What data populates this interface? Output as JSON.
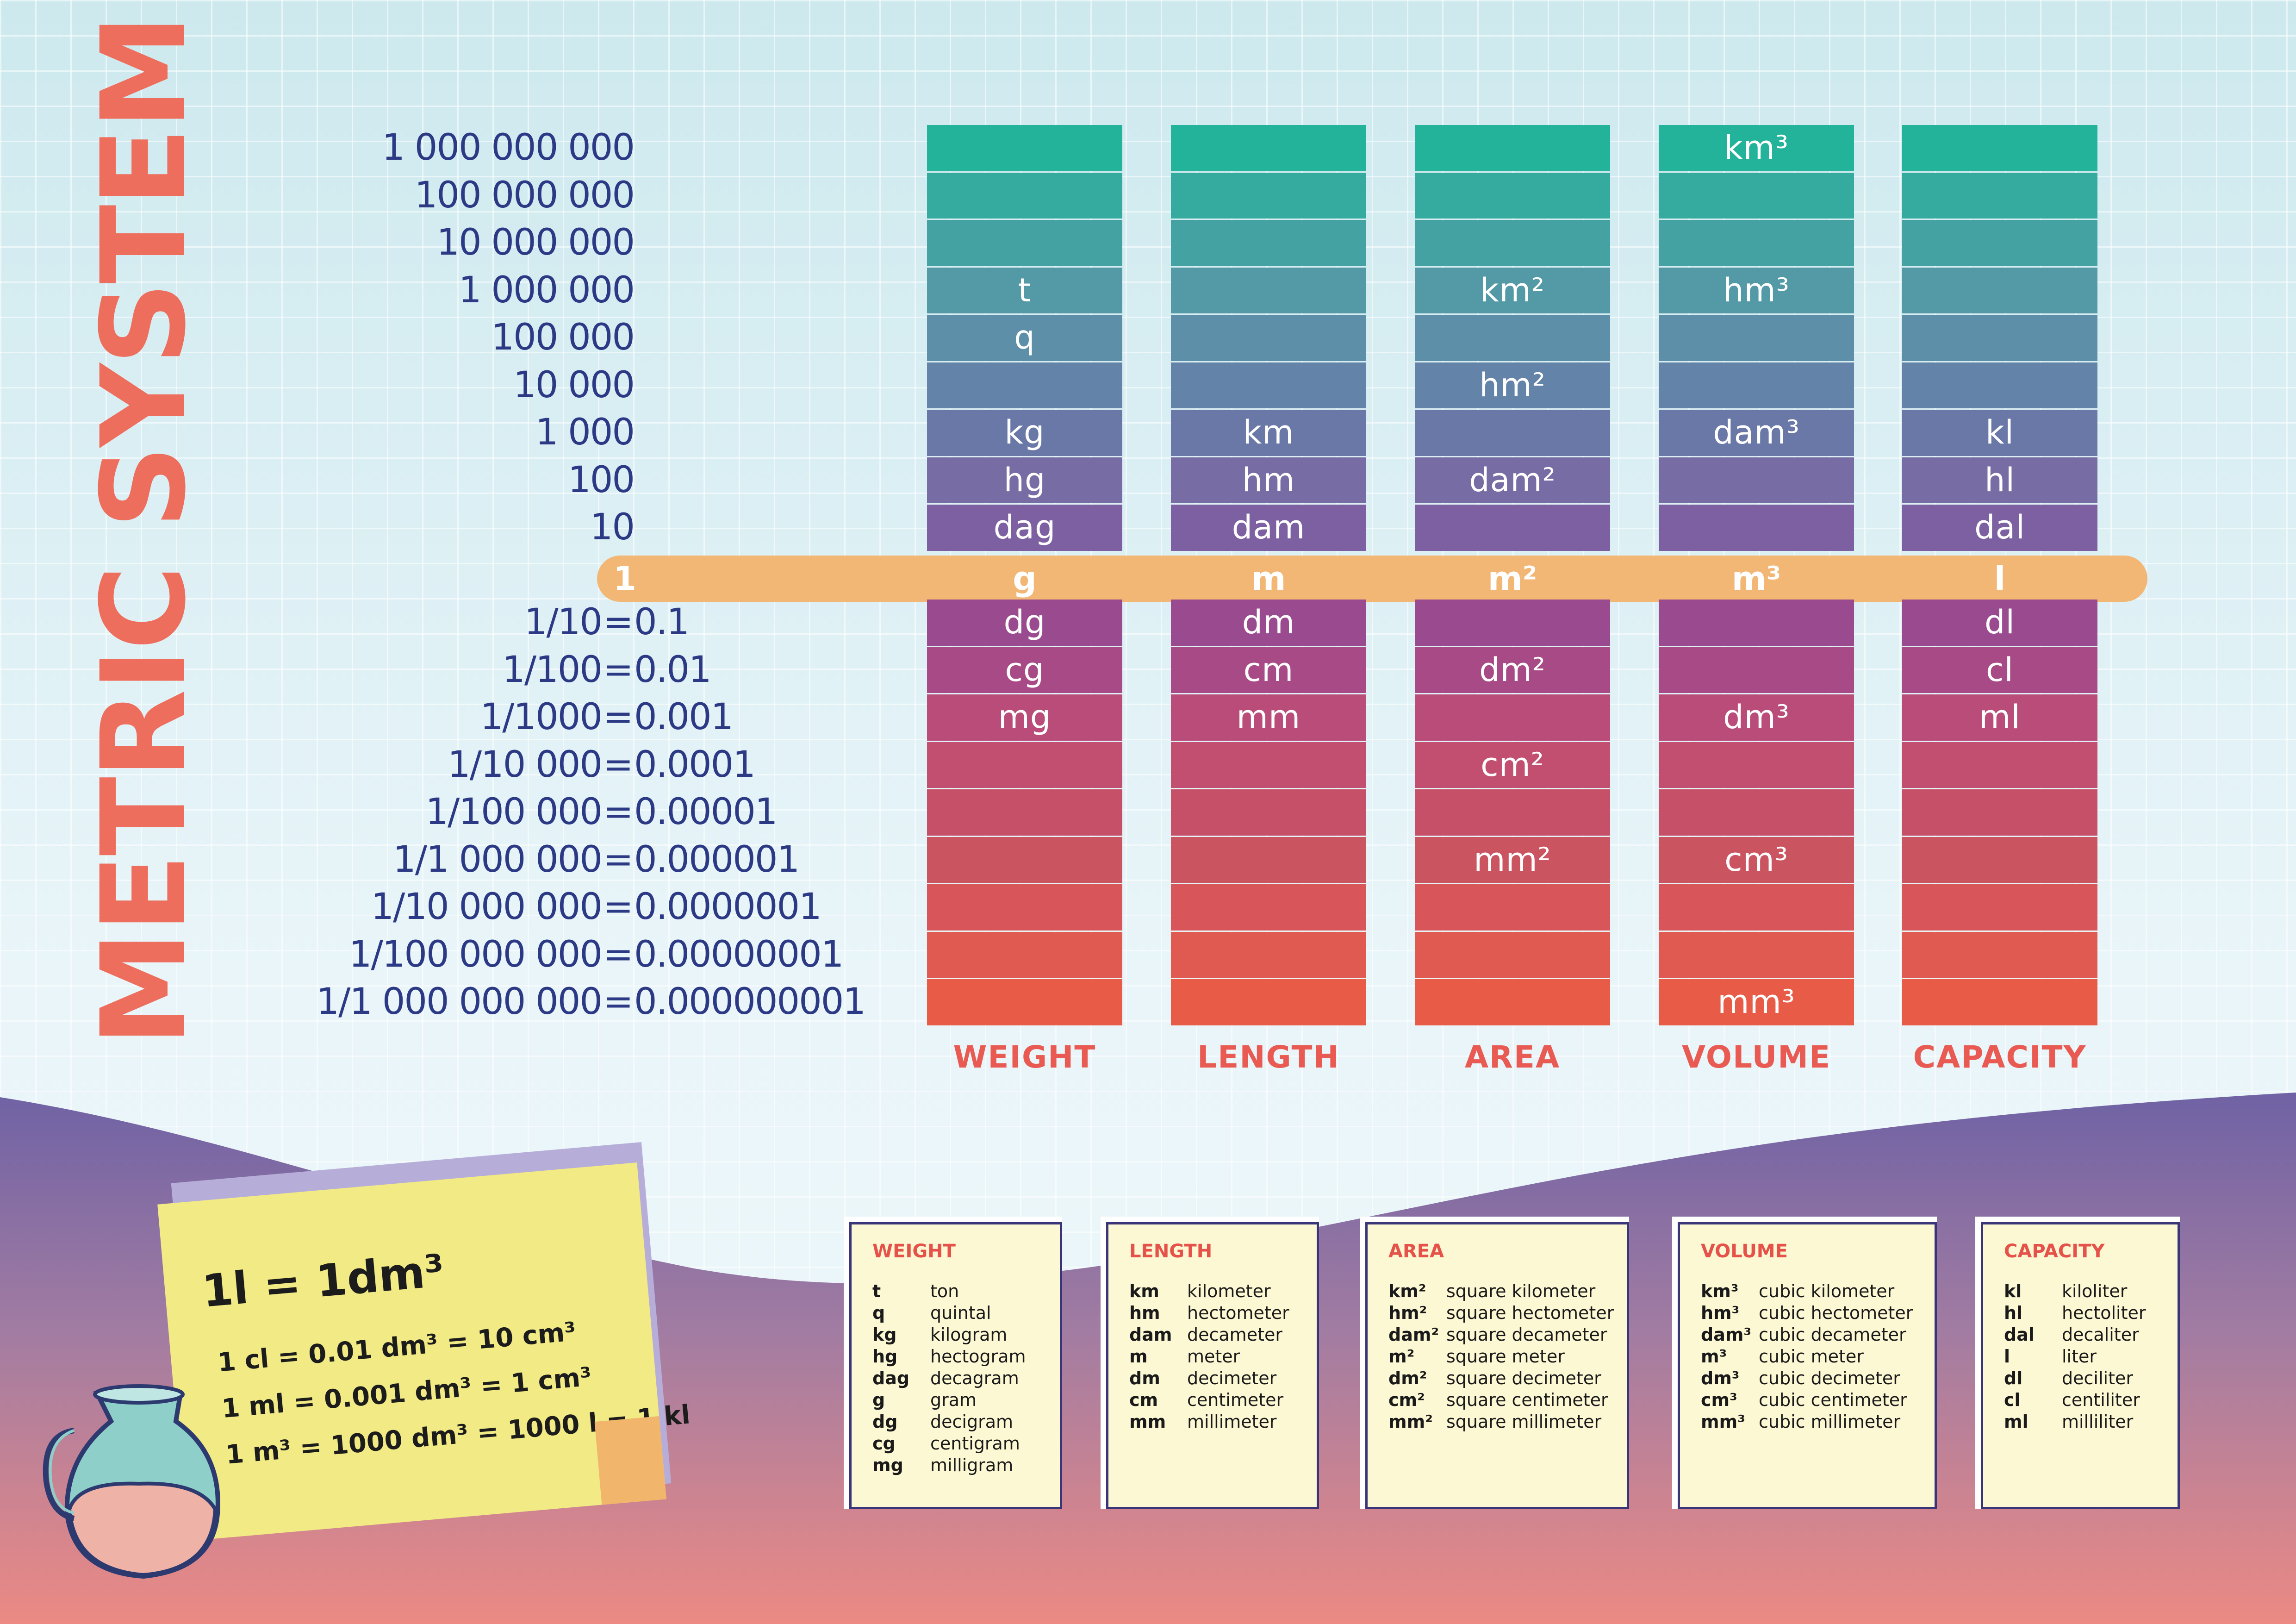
{
  "title": "METRIC SYSTEM",
  "colors": {
    "title": "#ee6e5d",
    "scale_text": "#2c3a86",
    "caption": "#e85a52",
    "band": "#f2b774",
    "row_gradient": [
      "#22b39a",
      "#34ab9e",
      "#45a2a2",
      "#5499a6",
      "#5d8fa8",
      "#6483a8",
      "#6a78a7",
      "#776ca3",
      "#7d60a1",
      "#8c4f98",
      "#9a4b8f",
      "#a84a86",
      "#b94c78",
      "#c24f70",
      "#c65068",
      "#cb5461",
      "#d8565a",
      "#e05a51",
      "#e85c47"
    ]
  },
  "scale_labels": [
    "1 000 000 000",
    "100 000 000",
    "10 000 000",
    "1 000 000",
    "100 000",
    "10 000",
    "1 000",
    "100",
    "10"
  ],
  "base_label": "1",
  "fraction_labels": [
    {
      "frac": "1/10",
      "eq": "=",
      "dec": "0.1"
    },
    {
      "frac": "1/100",
      "eq": "=",
      "dec": "0.01"
    },
    {
      "frac": "1/1000",
      "eq": "=",
      "dec": "0.001"
    },
    {
      "frac": "1/10 000",
      "eq": "=",
      "dec": "0.0001"
    },
    {
      "frac": "1/100 000",
      "eq": "=",
      "dec": "0.00001"
    },
    {
      "frac": "1/1 000 000",
      "eq": "=",
      "dec": "0.000001"
    },
    {
      "frac": "1/10 000 000",
      "eq": "=",
      "dec": "0.0000001"
    },
    {
      "frac": "1/100 000 000",
      "eq": "=",
      "dec": "0.00000001"
    },
    {
      "frac": "1/1 000 000 000",
      "eq": "=",
      "dec": "0.000000001"
    }
  ],
  "columns": [
    {
      "caption": "WEIGHT",
      "base": "g",
      "cells": [
        "",
        "",
        "",
        "t",
        "q",
        "",
        "kg",
        "hg",
        "dag",
        "",
        "dg",
        "cg",
        "mg",
        "",
        "",
        "",
        "",
        "",
        ""
      ]
    },
    {
      "caption": "LENGTH",
      "base": "m",
      "cells": [
        "",
        "",
        "",
        "",
        "",
        "",
        "km",
        "hm",
        "dam",
        "",
        "dm",
        "cm",
        "mm",
        "",
        "",
        "",
        "",
        "",
        ""
      ]
    },
    {
      "caption": "AREA",
      "base": "m²",
      "cells": [
        "",
        "",
        "",
        "km²",
        "",
        "hm²",
        "",
        "dam²",
        "",
        "",
        "",
        "dm²",
        "",
        "cm²",
        "",
        "mm²",
        "",
        "",
        ""
      ]
    },
    {
      "caption": "VOLUME",
      "base": "m³",
      "cells": [
        "km³",
        "",
        "",
        "hm³",
        "",
        "",
        "dam³",
        "",
        "",
        "",
        "",
        "",
        "dm³",
        "",
        "",
        "cm³",
        "",
        "",
        "mm³"
      ]
    },
    {
      "caption": "CAPACITY",
      "base": "l",
      "cells": [
        "",
        "",
        "",
        "",
        "",
        "",
        "kl",
        "hl",
        "dal",
        "",
        "dl",
        "cl",
        "ml",
        "",
        "",
        "",
        "",
        "",
        ""
      ]
    }
  ],
  "note": {
    "main": "1l = 1dm³",
    "lines": [
      "1 cl = 0.01 dm³ = 10 cm³",
      "1 ml = 0.001 dm³ = 1 cm³",
      "1 m³ = 1000 dm³ = 1000 l = 1 kl"
    ]
  },
  "glossary": [
    {
      "title": "WEIGHT",
      "rows": [
        [
          "t",
          "ton"
        ],
        [
          "q",
          "quintal"
        ],
        [
          "kg",
          "kilogram"
        ],
        [
          "hg",
          "hectogram"
        ],
        [
          "dag",
          "decagram"
        ],
        [
          "g",
          "gram"
        ],
        [
          "dg",
          "decigram"
        ],
        [
          "cg",
          "centigram"
        ],
        [
          "mg",
          "milligram"
        ]
      ]
    },
    {
      "title": "LENGTH",
      "rows": [
        [
          "km",
          "kilometer"
        ],
        [
          "hm",
          "hectometer"
        ],
        [
          "dam",
          "decameter"
        ],
        [
          "m",
          "meter"
        ],
        [
          "dm",
          "decimeter"
        ],
        [
          "cm",
          "centimeter"
        ],
        [
          "mm",
          "millimeter"
        ]
      ]
    },
    {
      "title": "AREA",
      "rows": [
        [
          "km²",
          "square kilometer"
        ],
        [
          "hm²",
          "square hectometer"
        ],
        [
          "dam²",
          "square decameter"
        ],
        [
          "m²",
          "square meter"
        ],
        [
          "dm²",
          "square decimeter"
        ],
        [
          "cm²",
          "square centimeter"
        ],
        [
          "mm²",
          "square millimeter"
        ]
      ]
    },
    {
      "title": "VOLUME",
      "rows": [
        [
          "km³",
          "cubic kilometer"
        ],
        [
          "hm³",
          "cubic hectometer"
        ],
        [
          "dam³",
          "cubic decameter"
        ],
        [
          "m³",
          "cubic meter"
        ],
        [
          "dm³",
          "cubic decimeter"
        ],
        [
          "cm³",
          "cubic centimeter"
        ],
        [
          "mm³",
          "cubic millimeter"
        ]
      ]
    },
    {
      "title": "CAPACITY",
      "rows": [
        [
          "kl",
          "kiloliter"
        ],
        [
          "hl",
          "hectoliter"
        ],
        [
          "dal",
          "decaliter"
        ],
        [
          "l",
          "liter"
        ],
        [
          "dl",
          "deciliter"
        ],
        [
          "cl",
          "centiliter"
        ],
        [
          "ml",
          "milliliter"
        ]
      ]
    }
  ]
}
